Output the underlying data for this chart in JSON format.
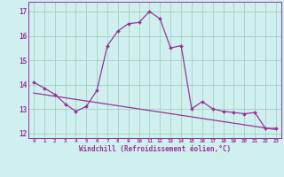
{
  "hours": [
    0,
    1,
    2,
    3,
    4,
    5,
    6,
    7,
    8,
    9,
    10,
    11,
    12,
    13,
    14,
    15,
    16,
    17,
    18,
    19,
    20,
    21,
    22,
    23
  ],
  "temp_line": [
    14.1,
    13.85,
    13.6,
    13.2,
    12.9,
    13.1,
    13.75,
    15.6,
    16.2,
    16.5,
    16.55,
    17.0,
    16.7,
    15.5,
    15.6,
    13.0,
    13.3,
    13.0,
    12.9,
    12.85,
    12.8,
    12.85,
    12.2,
    12.2
  ],
  "trend_line_x": [
    0,
    23
  ],
  "trend_line_y": [
    13.65,
    12.15
  ],
  "line_color": "#993399",
  "bg_color": "#cff0ee",
  "grid_color": "#99ccbb",
  "xlabel": "Windchill (Refroidissement éolien,°C)",
  "ylabel_ticks": [
    12,
    13,
    14,
    15,
    16,
    17
  ],
  "xtick_labels": [
    "0",
    "1",
    "2",
    "3",
    "4",
    "5",
    "6",
    "7",
    "8",
    "9",
    "10",
    "11",
    "12",
    "13",
    "14",
    "15",
    "16",
    "17",
    "18",
    "19",
    "20",
    "21",
    "22",
    "23"
  ],
  "xlim": [
    -0.5,
    23.5
  ],
  "ylim": [
    11.8,
    17.4
  ]
}
